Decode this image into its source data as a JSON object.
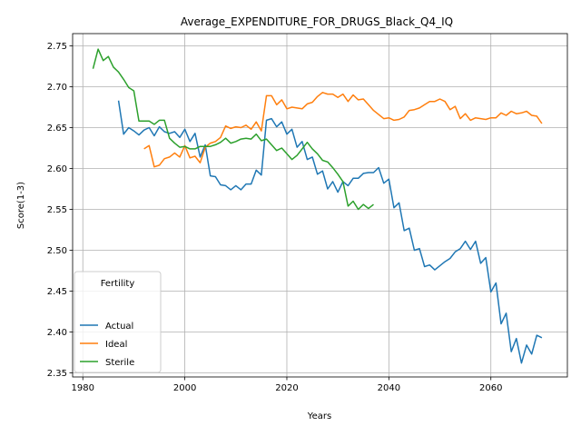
{
  "chart_data": {
    "type": "line",
    "title": "Average_EXPENDITURE_FOR_DRUGS_Black_Q4_IQ",
    "xlabel": "Years",
    "ylabel": "Score(1-3)",
    "xlim": [
      1978,
      2075
    ],
    "ylim": [
      2.345,
      2.765
    ],
    "xticks": [
      1980,
      2000,
      2020,
      2040,
      2060
    ],
    "yticks": [
      2.35,
      2.4,
      2.45,
      2.5,
      2.55,
      2.6,
      2.65,
      2.7,
      2.75
    ],
    "xtick_labels": [
      "1980",
      "2000",
      "2020",
      "2040",
      "2060"
    ],
    "ytick_labels": [
      "2.35",
      "2.40",
      "2.45",
      "2.50",
      "2.55",
      "2.60",
      "2.65",
      "2.70",
      "2.75"
    ],
    "grid": true,
    "legend": {
      "title": "Fertility",
      "placement": "lower-left"
    },
    "series": [
      {
        "name": "Actual",
        "color": "#1f77b4",
        "x": [
          1987,
          1988,
          1989,
          1990,
          1991,
          1992,
          1993,
          1994,
          1995,
          1996,
          1997,
          1998,
          1999,
          2000,
          2001,
          2002,
          2003,
          2004,
          2005,
          2006,
          2007,
          2008,
          2009,
          2010,
          2011,
          2012,
          2013,
          2014,
          2015,
          2016,
          2017,
          2018,
          2019,
          2020,
          2021,
          2022,
          2023,
          2024,
          2025,
          2026,
          2027,
          2028,
          2029,
          2030,
          2031,
          2032,
          2033,
          2034,
          2035,
          2036,
          2037,
          2038,
          2039,
          2040,
          2041,
          2042,
          2043,
          2044,
          2045,
          2046,
          2047,
          2048,
          2049,
          2050,
          2051,
          2052,
          2053,
          2054,
          2055,
          2056,
          2057,
          2058,
          2059,
          2060,
          2061,
          2062,
          2063,
          2064,
          2065,
          2066,
          2067,
          2068,
          2069,
          2070
        ],
        "values": [
          2.683,
          2.642,
          2.65,
          2.646,
          2.641,
          2.647,
          2.65,
          2.64,
          2.651,
          2.645,
          2.643,
          2.645,
          2.638,
          2.648,
          2.633,
          2.643,
          2.614,
          2.629,
          2.591,
          2.59,
          2.58,
          2.579,
          2.574,
          2.579,
          2.574,
          2.581,
          2.581,
          2.598,
          2.592,
          2.659,
          2.661,
          2.651,
          2.657,
          2.642,
          2.648,
          2.626,
          2.633,
          2.611,
          2.614,
          2.593,
          2.597,
          2.575,
          2.584,
          2.571,
          2.584,
          2.579,
          2.588,
          2.588,
          2.594,
          2.595,
          2.595,
          2.601,
          2.582,
          2.587,
          2.552,
          2.558,
          2.524,
          2.527,
          2.5,
          2.502,
          2.48,
          2.482,
          2.476,
          2.481,
          2.486,
          2.49,
          2.498,
          2.502,
          2.511,
          2.501,
          2.511,
          2.484,
          2.491,
          2.449,
          2.46,
          2.41,
          2.423,
          2.376,
          2.392,
          2.362,
          2.384,
          2.373,
          2.396,
          2.393
        ]
      },
      {
        "name": "Ideal",
        "color": "#ff7f0e",
        "x": [
          1992,
          1993,
          1994,
          1995,
          1996,
          1997,
          1998,
          1999,
          2000,
          2001,
          2002,
          2003,
          2004,
          2005,
          2006,
          2007,
          2008,
          2009,
          2010,
          2011,
          2012,
          2013,
          2014,
          2015,
          2016,
          2017,
          2018,
          2019,
          2020,
          2021,
          2022,
          2023,
          2024,
          2025,
          2026,
          2027,
          2028,
          2029,
          2030,
          2031,
          2032,
          2033,
          2034,
          2035,
          2036,
          2037,
          2038,
          2039,
          2040,
          2041,
          2042,
          2043,
          2044,
          2045,
          2046,
          2047,
          2048,
          2049,
          2050,
          2051,
          2052,
          2053,
          2054,
          2055,
          2056,
          2057,
          2058,
          2059,
          2060,
          2061,
          2062,
          2063,
          2064,
          2065,
          2066,
          2067,
          2068,
          2069,
          2070
        ],
        "values": [
          2.624,
          2.628,
          2.602,
          2.604,
          2.612,
          2.614,
          2.619,
          2.614,
          2.628,
          2.613,
          2.615,
          2.607,
          2.626,
          2.631,
          2.633,
          2.638,
          2.652,
          2.649,
          2.651,
          2.65,
          2.653,
          2.648,
          2.657,
          2.646,
          2.689,
          2.689,
          2.678,
          2.684,
          2.673,
          2.675,
          2.674,
          2.673,
          2.679,
          2.681,
          2.688,
          2.693,
          2.691,
          2.691,
          2.687,
          2.691,
          2.682,
          2.69,
          2.684,
          2.685,
          2.678,
          2.671,
          2.666,
          2.661,
          2.662,
          2.659,
          2.66,
          2.663,
          2.671,
          2.672,
          2.674,
          2.678,
          2.682,
          2.682,
          2.685,
          2.682,
          2.672,
          2.676,
          2.661,
          2.667,
          2.659,
          2.662,
          2.661,
          2.66,
          2.662,
          2.662,
          2.668,
          2.665,
          2.67,
          2.667,
          2.668,
          2.67,
          2.665,
          2.664,
          2.655
        ]
      },
      {
        "name": "Sterile",
        "color": "#2ca02c",
        "x": [
          1982,
          1983,
          1984,
          1985,
          1986,
          1987,
          1988,
          1989,
          1990,
          1991,
          1992,
          1993,
          1994,
          1995,
          1996,
          1997,
          1998,
          1999,
          2000,
          2001,
          2002,
          2003,
          2004,
          2005,
          2006,
          2007,
          2008,
          2009,
          2010,
          2011,
          2012,
          2013,
          2014,
          2015,
          2016,
          2017,
          2018,
          2019,
          2020,
          2021,
          2022,
          2023,
          2024,
          2025,
          2026,
          2027,
          2028,
          2029,
          2030,
          2031,
          2032,
          2033,
          2034,
          2035,
          2036,
          2037
        ],
        "values": [
          2.722,
          2.746,
          2.732,
          2.737,
          2.724,
          2.718,
          2.709,
          2.699,
          2.695,
          2.658,
          2.658,
          2.658,
          2.654,
          2.659,
          2.659,
          2.637,
          2.631,
          2.626,
          2.627,
          2.624,
          2.624,
          2.627,
          2.627,
          2.627,
          2.629,
          2.632,
          2.637,
          2.631,
          2.633,
          2.636,
          2.637,
          2.636,
          2.642,
          2.634,
          2.636,
          2.629,
          2.622,
          2.625,
          2.618,
          2.611,
          2.616,
          2.624,
          2.632,
          2.624,
          2.618,
          2.61,
          2.608,
          2.601,
          2.593,
          2.584,
          2.554,
          2.56,
          2.55,
          2.556,
          2.551,
          2.556
        ]
      }
    ]
  }
}
